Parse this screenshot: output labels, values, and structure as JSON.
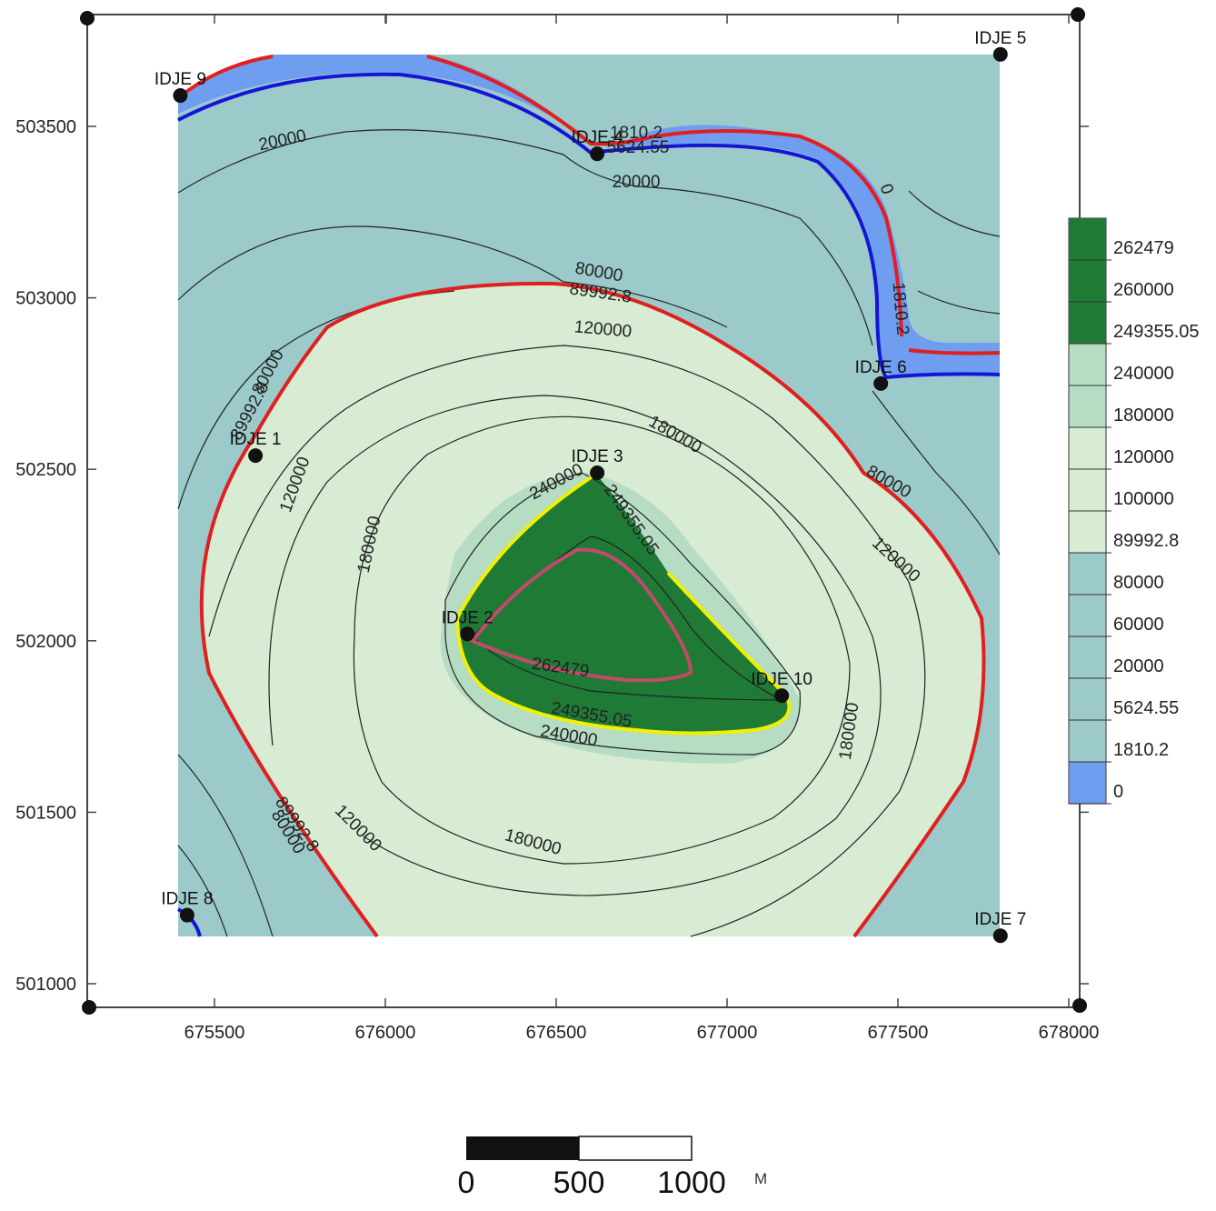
{
  "map": {
    "axes": {
      "x_ticks": [
        "675500",
        "676000",
        "676500",
        "677000",
        "677500",
        "678000"
      ],
      "y_ticks": [
        "503500",
        "503000",
        "502500",
        "502000",
        "501500",
        "501000"
      ]
    },
    "wells": [
      {
        "name": "IDJE 9",
        "x": 675400,
        "y": 503590
      },
      {
        "name": "IDJE 4",
        "x": 676620,
        "y": 503420
      },
      {
        "name": "IDJE 5",
        "x": 677800,
        "y": 503710
      },
      {
        "name": "IDJE 6",
        "x": 677450,
        "y": 502750
      },
      {
        "name": "IDJE 1",
        "x": 675620,
        "y": 502540
      },
      {
        "name": "IDJE 3",
        "x": 676620,
        "y": 502490
      },
      {
        "name": "IDJE 2",
        "x": 676240,
        "y": 502020
      },
      {
        "name": "IDJE 10",
        "x": 677160,
        "y": 501840
      },
      {
        "name": "IDJE 8",
        "x": 675420,
        "y": 501200
      },
      {
        "name": "IDJE 7",
        "x": 677800,
        "y": 501140
      }
    ],
    "contour_labels": [
      {
        "text": "20000"
      },
      {
        "text": "20000"
      },
      {
        "text": "1810.2"
      },
      {
        "text": "5624.55"
      },
      {
        "text": "0"
      },
      {
        "text": "1810.2"
      },
      {
        "text": "80000"
      },
      {
        "text": "89992.8"
      },
      {
        "text": "120000"
      },
      {
        "text": "80000"
      },
      {
        "text": "89992.8"
      },
      {
        "text": "120000"
      },
      {
        "text": "180000"
      },
      {
        "text": "240000"
      },
      {
        "text": "249355.05"
      },
      {
        "text": "180000"
      },
      {
        "text": "80000"
      },
      {
        "text": "120000"
      },
      {
        "text": "262479"
      },
      {
        "text": "249355.05"
      },
      {
        "text": "240000"
      },
      {
        "text": "180000"
      },
      {
        "text": "89992.8"
      },
      {
        "text": "80000"
      },
      {
        "text": "120000"
      },
      {
        "text": "180000"
      }
    ]
  },
  "legend": {
    "levels": [
      "262479",
      "260000",
      "249355.05",
      "240000",
      "180000",
      "120000",
      "100000",
      "89992.8",
      "80000",
      "60000",
      "20000",
      "5624.55",
      "1810.2",
      "0"
    ],
    "colors": {
      "top": "#1e7a35",
      "light_green": "#b6dcc3",
      "pale_green": "#d7ecd3",
      "teal": "#9ccaca",
      "blue": "#6f9df0"
    }
  },
  "scale_bar": {
    "labels": [
      "0",
      "500",
      "1000"
    ],
    "unit": "M"
  },
  "colors": {
    "zone_outer": "#9ccaca",
    "zone_pale": "#d7ecd3",
    "zone_light": "#b6dcc3",
    "zone_core": "#1e7a35",
    "zone_blue": "#6f9df0",
    "line_red": "#e02020",
    "line_blue": "#1515d8",
    "line_yellow": "#f0f000",
    "line_purple": "#c24a6a"
  }
}
